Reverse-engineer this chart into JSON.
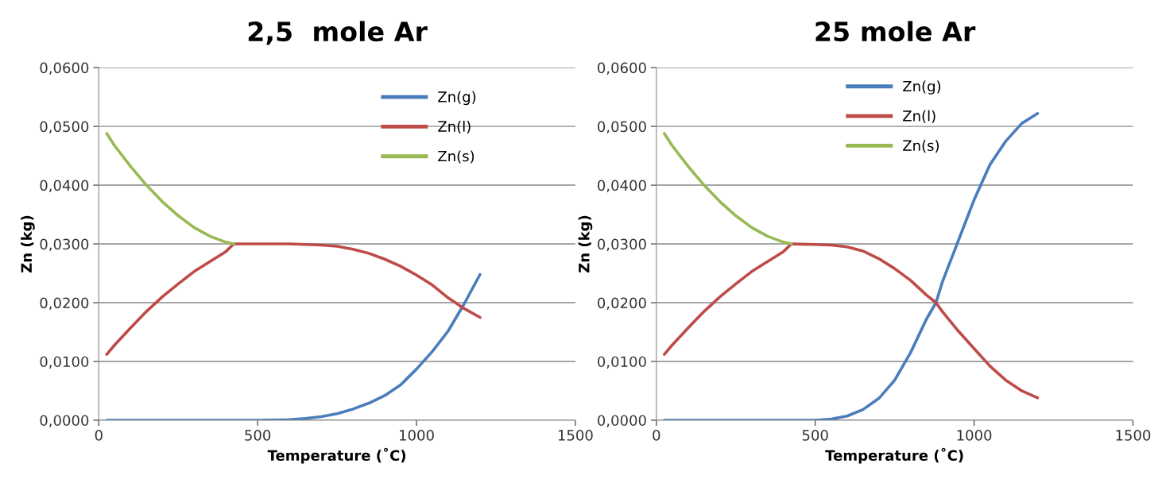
{
  "chart_data": [
    {
      "type": "line",
      "title": "2,5  mole Ar",
      "xlabel": "Temperature (˚C)",
      "ylabel": "Zn (kg)",
      "xlim": [
        0,
        1500
      ],
      "ylim": [
        0,
        0.06
      ],
      "xticks": [
        0,
        500,
        1000,
        1500
      ],
      "yticks": [
        {
          "value": 0,
          "label": "0,0000"
        },
        {
          "value": 0.01,
          "label": "0,0100"
        },
        {
          "value": 0.02,
          "label": "0,0200"
        },
        {
          "value": 0.03,
          "label": "0,0300"
        },
        {
          "value": 0.04,
          "label": "0,0400"
        },
        {
          "value": 0.05,
          "label": "0,0500"
        },
        {
          "value": 0.06,
          "label": "0,0600"
        }
      ],
      "grid": "y",
      "legend": "top right",
      "marker": "none",
      "line_style": "solid",
      "series": [
        {
          "name": "Zn(g)",
          "color": "#4a7ebb",
          "x": [
            25,
            200,
            400,
            500,
            600,
            650,
            700,
            750,
            800,
            850,
            900,
            950,
            1000,
            1050,
            1100,
            1150,
            1200
          ],
          "values": [
            0,
            0,
            0,
            0,
            0.0001,
            0.0003,
            0.0006,
            0.0011,
            0.0019,
            0.0029,
            0.0042,
            0.006,
            0.0087,
            0.0117,
            0.0152,
            0.0198,
            0.0248
          ]
        },
        {
          "name": "Zn(l)",
          "color": "#be4b48",
          "x": [
            25,
            50,
            100,
            150,
            200,
            250,
            300,
            350,
            400,
            425,
            500,
            600,
            700,
            750,
            800,
            850,
            900,
            950,
            1000,
            1050,
            1100,
            1150,
            1200
          ],
          "values": [
            0.0112,
            0.0128,
            0.0157,
            0.0185,
            0.021,
            0.0232,
            0.0253,
            0.027,
            0.0287,
            0.03,
            0.03,
            0.03,
            0.0298,
            0.0296,
            0.0291,
            0.0284,
            0.0274,
            0.0262,
            0.0247,
            0.023,
            0.0208,
            0.019,
            0.0175
          ]
        },
        {
          "name": "Zn(s)",
          "color": "#98b954",
          "x": [
            25,
            50,
            100,
            150,
            200,
            250,
            300,
            350,
            400,
            425
          ],
          "values": [
            0.0488,
            0.0467,
            0.0432,
            0.04,
            0.0372,
            0.0348,
            0.0328,
            0.0313,
            0.0303,
            0.03
          ]
        }
      ]
    },
    {
      "type": "line",
      "title": "25 mole Ar",
      "xlabel": "Temperature (˚C)",
      "ylabel": "Zn (kg)",
      "xlim": [
        0,
        1500
      ],
      "ylim": [
        0,
        0.06
      ],
      "xticks": [
        0,
        500,
        1000,
        1500
      ],
      "yticks": [
        {
          "value": 0,
          "label": "0,0000"
        },
        {
          "value": 0.01,
          "label": "0,0100"
        },
        {
          "value": 0.02,
          "label": "0,0200"
        },
        {
          "value": 0.03,
          "label": "0,0300"
        },
        {
          "value": 0.04,
          "label": "0,0400"
        },
        {
          "value": 0.05,
          "label": "0,0500"
        },
        {
          "value": 0.06,
          "label": "0,0600"
        }
      ],
      "grid": "y",
      "legend": "top",
      "marker": "none",
      "line_style": "solid",
      "series": [
        {
          "name": "Zn(g)",
          "color": "#4a7ebb",
          "x": [
            25,
            200,
            400,
            500,
            550,
            600,
            650,
            700,
            750,
            800,
            850,
            880,
            900,
            950,
            1000,
            1050,
            1100,
            1150,
            1200
          ],
          "values": [
            0,
            0,
            0,
            0,
            0.0002,
            0.0007,
            0.0018,
            0.0037,
            0.0068,
            0.0115,
            0.0172,
            0.02,
            0.0235,
            0.0305,
            0.0375,
            0.0435,
            0.0475,
            0.0505,
            0.0522
          ]
        },
        {
          "name": "Zn(l)",
          "color": "#be4b48",
          "x": [
            25,
            50,
            100,
            150,
            200,
            250,
            300,
            350,
            400,
            425,
            500,
            550,
            600,
            650,
            700,
            750,
            800,
            850,
            880,
            900,
            950,
            1000,
            1050,
            1100,
            1150,
            1200
          ],
          "values": [
            0.0112,
            0.0128,
            0.0157,
            0.0185,
            0.021,
            0.0232,
            0.0253,
            0.027,
            0.0287,
            0.03,
            0.0299,
            0.0298,
            0.0295,
            0.0288,
            0.0275,
            0.0258,
            0.0238,
            0.0213,
            0.02,
            0.0185,
            0.0152,
            0.0122,
            0.0092,
            0.0068,
            0.005,
            0.0038
          ]
        },
        {
          "name": "Zn(s)",
          "color": "#98b954",
          "x": [
            25,
            50,
            100,
            150,
            200,
            250,
            300,
            350,
            400,
            425
          ],
          "values": [
            0.0488,
            0.0467,
            0.0432,
            0.04,
            0.0372,
            0.0348,
            0.0328,
            0.0313,
            0.0303,
            0.03
          ]
        }
      ]
    }
  ]
}
